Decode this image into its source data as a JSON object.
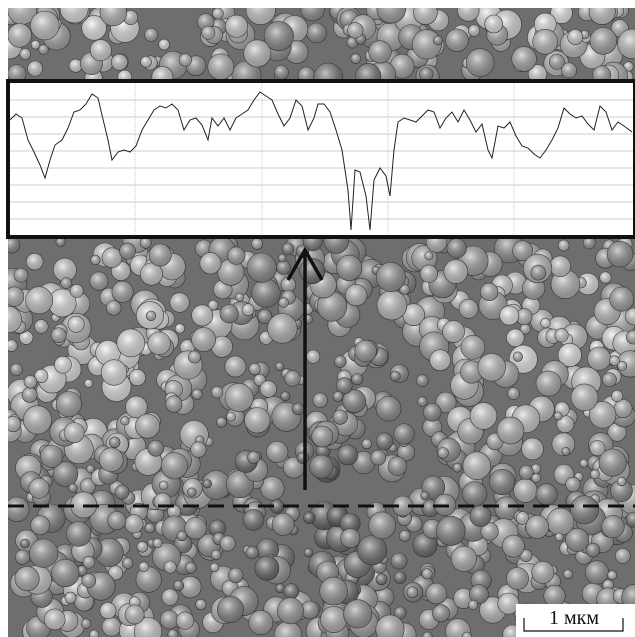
{
  "scale_bar": {
    "label": "1 мкм"
  }
}
